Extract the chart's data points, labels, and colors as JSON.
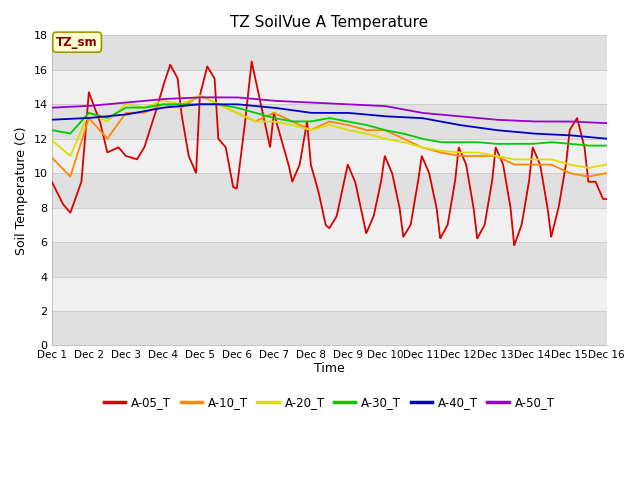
{
  "title": "TZ SoilVue A Temperature",
  "xlabel": "Time",
  "ylabel": "Soil Temperature (C)",
  "ylim": [
    0,
    18
  ],
  "yticks": [
    0,
    2,
    4,
    6,
    8,
    10,
    12,
    14,
    16,
    18
  ],
  "xlim": [
    0,
    15
  ],
  "xtick_labels": [
    "Dec 1",
    "Dec 2",
    "Dec 3",
    "Dec 4",
    "Dec 5",
    "Dec 6",
    "Dec 7",
    "Dec 8",
    "Dec 9",
    "Dec 10",
    "Dec 11",
    "Dec 12",
    "Dec 13",
    "Dec 14",
    "Dec 15",
    "Dec 16"
  ],
  "fig_bg": "#ffffff",
  "plot_bg_light": "#f0f0f0",
  "plot_bg_dark": "#e0e0e0",
  "grid_color": "#cccccc",
  "series_order": [
    "A-05_T",
    "A-10_T",
    "A-20_T",
    "A-30_T",
    "A-40_T",
    "A-50_T"
  ],
  "colors": {
    "A-05_T": "#dd0000",
    "A-10_T": "#ff8800",
    "A-20_T": "#dddd00",
    "A-30_T": "#00cc00",
    "A-40_T": "#0000cc",
    "A-50_T": "#9900cc"
  },
  "annotation_text": "TZ_sm",
  "annotation_color": "#880000",
  "annotation_bg": "#ffffcc",
  "annotation_edge": "#999900"
}
